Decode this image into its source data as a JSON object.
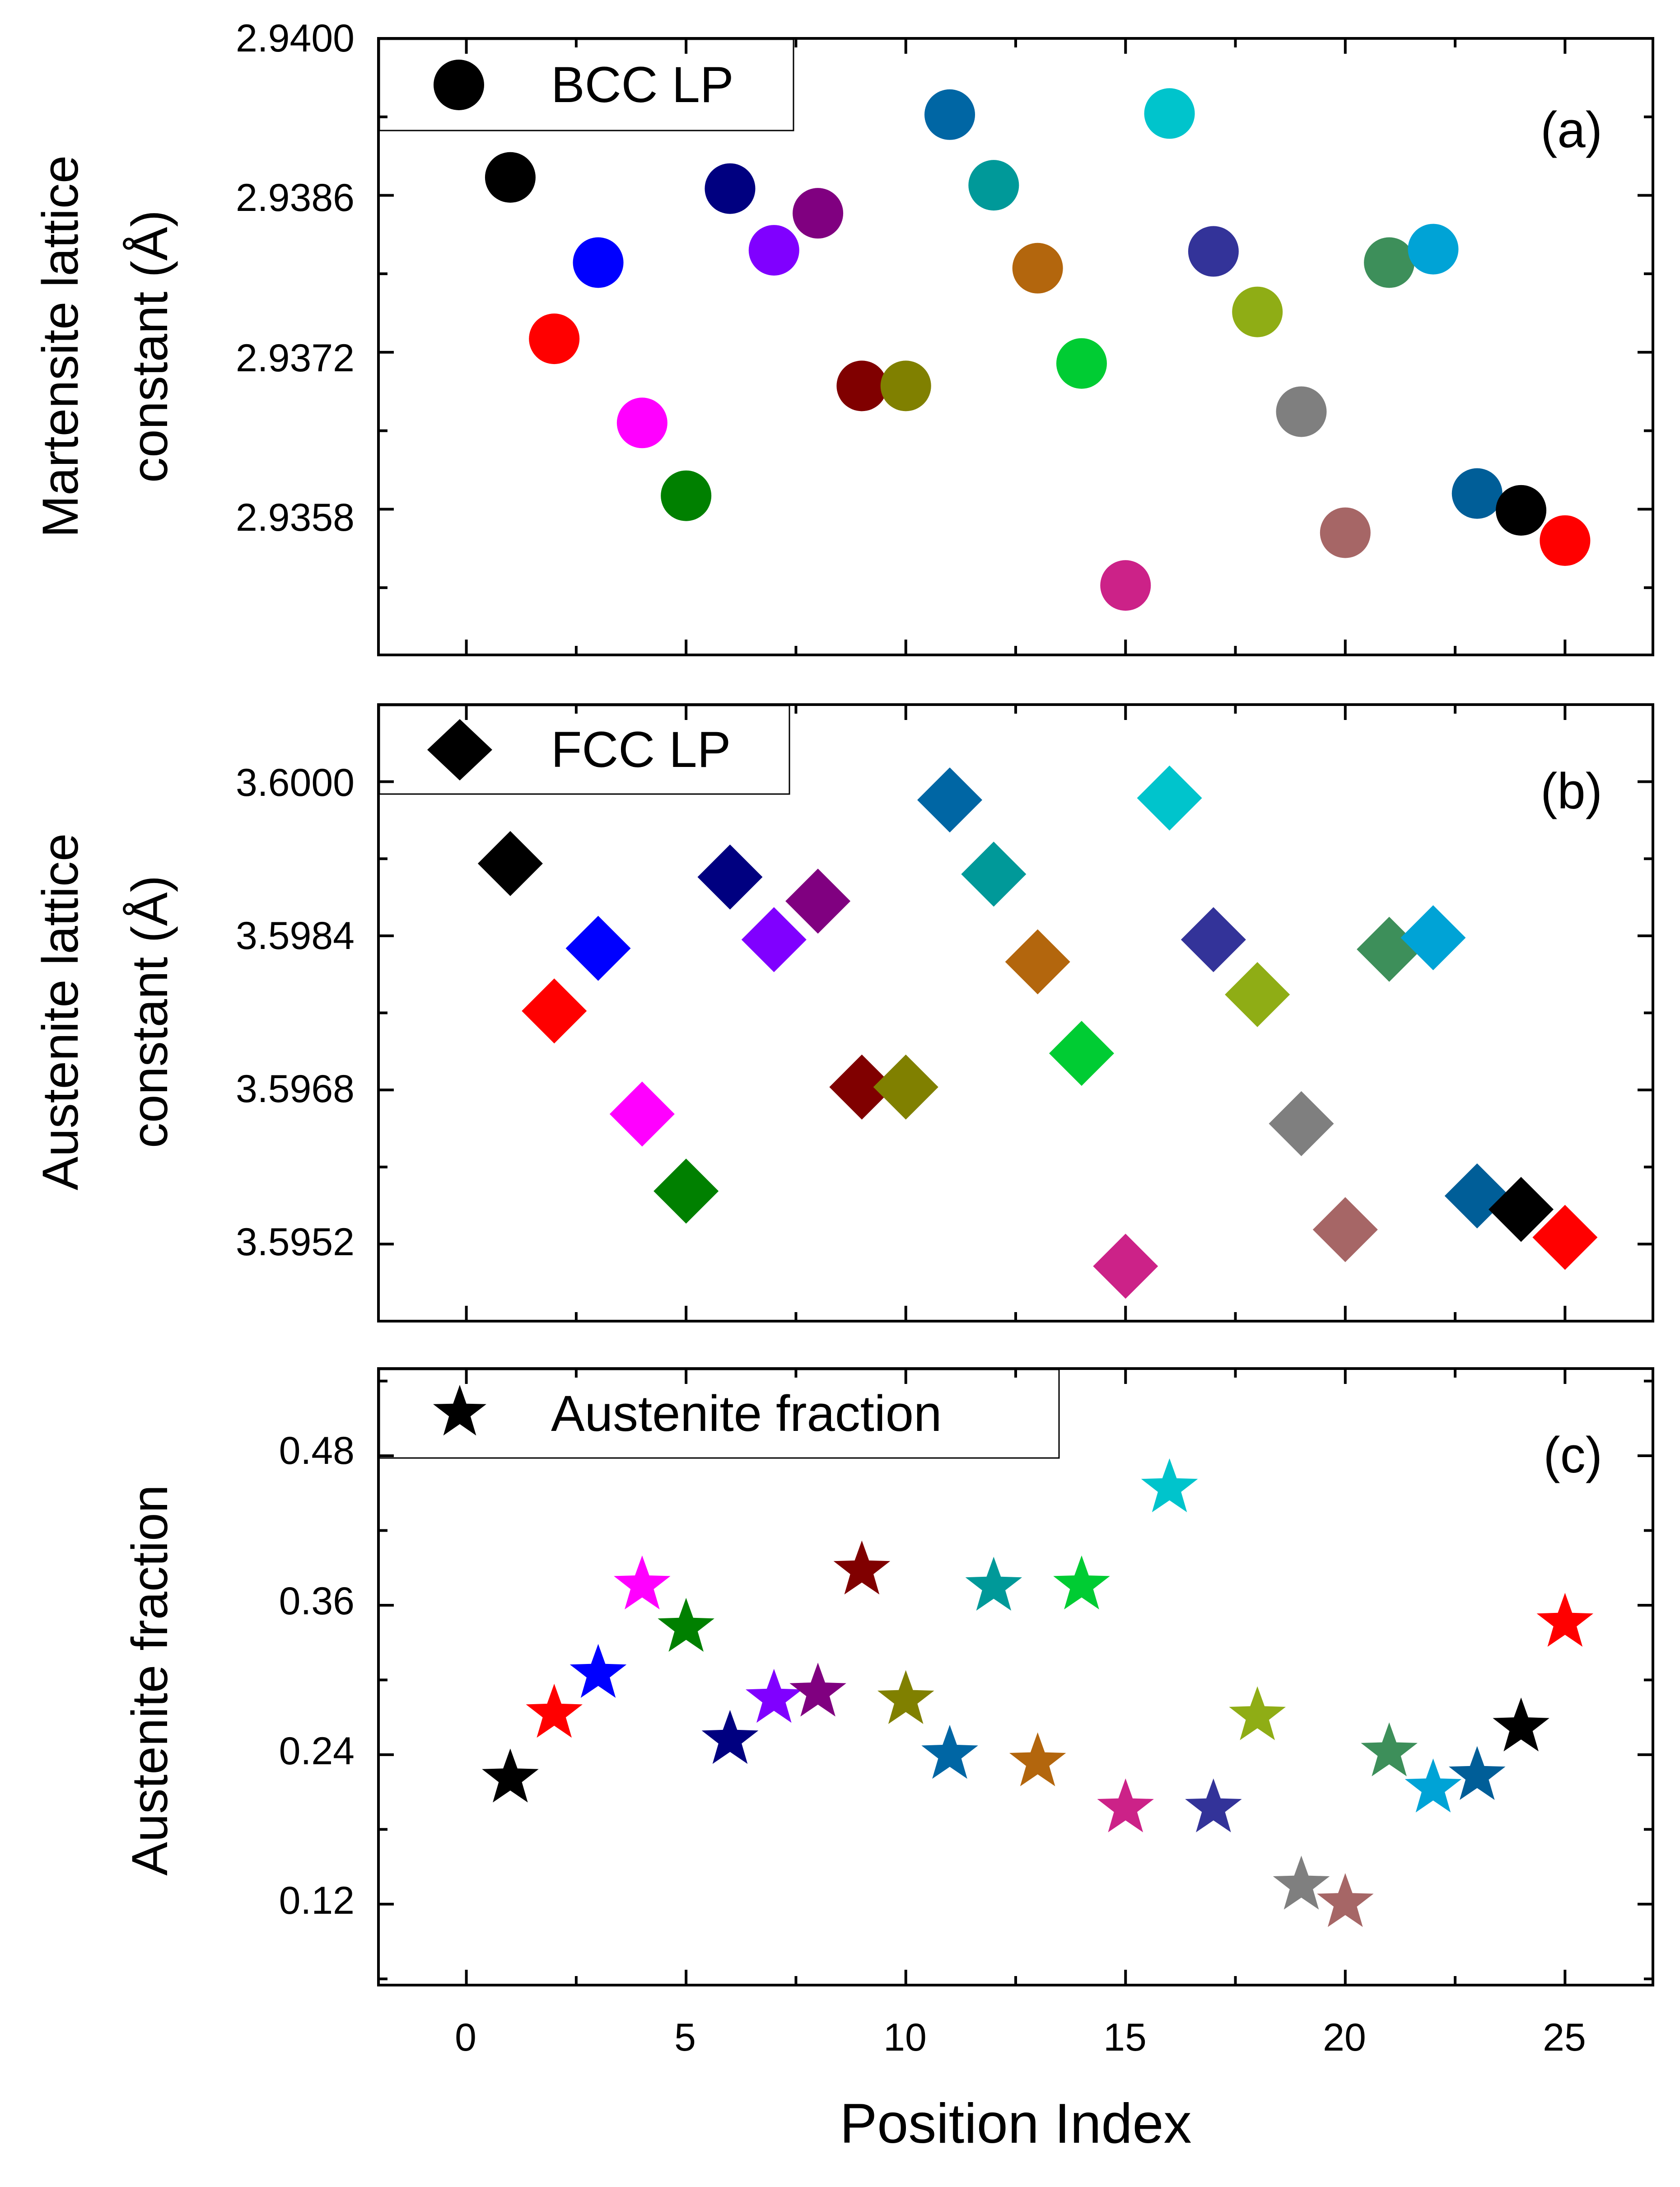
{
  "chart_data": [
    {
      "type": "scatter",
      "panel": "(a)",
      "ylabel": [
        "Martensite lattice",
        "constant (Å)"
      ],
      "xlim": [
        -2,
        27
      ],
      "ylim": [
        2.9345,
        2.94
      ],
      "yticks": [
        2.94,
        2.9386,
        2.9372,
        2.9358
      ],
      "ytick_labels": [
        "2.9400",
        "2.9386",
        "2.9372",
        "2.9358"
      ],
      "legend": "BCC LP",
      "marker": "circle",
      "x": [
        1,
        2,
        3,
        4,
        5,
        6,
        7,
        8,
        9,
        10,
        11,
        12,
        13,
        14,
        15,
        16,
        17,
        18,
        19,
        20,
        21,
        22,
        23,
        24,
        25
      ],
      "y": [
        2.93876,
        2.93732,
        2.938,
        2.93657,
        2.93592,
        2.93866,
        2.93811,
        2.93844,
        2.9369,
        2.9369,
        2.93932,
        2.93869,
        2.93795,
        2.9371,
        2.93512,
        2.93933,
        2.9381,
        2.93756,
        2.93667,
        2.93559,
        2.938,
        2.93812,
        2.93594,
        2.93579,
        2.93552
      ]
    },
    {
      "type": "scatter",
      "panel": "(b)",
      "ylabel": [
        "Austenite lattice",
        "constant (Å)"
      ],
      "xlim": [
        -2,
        27
      ],
      "ylim": [
        3.5944,
        3.6008
      ],
      "yticks": [
        3.6,
        3.5984,
        3.5968,
        3.5952
      ],
      "ytick_labels": [
        "3.6000",
        "3.5984",
        "3.5968",
        "3.5952"
      ],
      "legend": "FCC LP",
      "marker": "diamond",
      "x": [
        1,
        2,
        3,
        4,
        5,
        6,
        7,
        8,
        9,
        10,
        11,
        12,
        13,
        14,
        15,
        16,
        17,
        18,
        19,
        20,
        21,
        22,
        23,
        24,
        25
      ],
      "y": [
        3.59915,
        3.59762,
        3.59827,
        3.59655,
        3.59575,
        3.59901,
        3.59836,
        3.59876,
        3.59683,
        3.59683,
        3.59981,
        3.59904,
        3.59813,
        3.59718,
        3.59497,
        3.59983,
        3.59836,
        3.59779,
        3.59645,
        3.59535,
        3.59826,
        3.59838,
        3.5957,
        3.59556,
        3.59527
      ]
    },
    {
      "type": "scatter",
      "panel": "(c)",
      "xlabel": "Position Index",
      "ylabel": [
        "Austenite fraction"
      ],
      "xlim": [
        -2,
        27
      ],
      "xticks": [
        0,
        5,
        10,
        15,
        20,
        25
      ],
      "ylim": [
        0.055,
        0.55
      ],
      "yticks": [
        0.48,
        0.36,
        0.24,
        0.12
      ],
      "ytick_labels": [
        "0.48",
        "0.36",
        "0.24",
        "0.12"
      ],
      "legend": "Austenite fraction",
      "marker": "star",
      "x": [
        1,
        2,
        3,
        4,
        5,
        6,
        7,
        8,
        9,
        10,
        11,
        12,
        13,
        14,
        15,
        16,
        17,
        18,
        19,
        20,
        21,
        22,
        23,
        24,
        25
      ],
      "y": [
        0.221,
        0.273,
        0.305,
        0.376,
        0.342,
        0.252,
        0.285,
        0.29,
        0.388,
        0.284,
        0.24,
        0.375,
        0.234,
        0.376,
        0.197,
        0.454,
        0.197,
        0.271,
        0.135,
        0.121,
        0.242,
        0.213,
        0.223,
        0.262,
        0.346
      ]
    }
  ],
  "point_colors": [
    "#000000",
    "#ff0000",
    "#0000ff",
    "#ff00ff",
    "#008000",
    "#000080",
    "#8000ff",
    "#800080",
    "#800000",
    "#808000",
    "#0066a4",
    "#009999",
    "#b3660d",
    "#00cc33",
    "#cc2288",
    "#00c4cc",
    "#333399",
    "#8fad15",
    "#7f7f7f",
    "#a66666",
    "#3d8f5a",
    "#00a3d6",
    "#005e98",
    "#000000",
    "#ff0000"
  ]
}
